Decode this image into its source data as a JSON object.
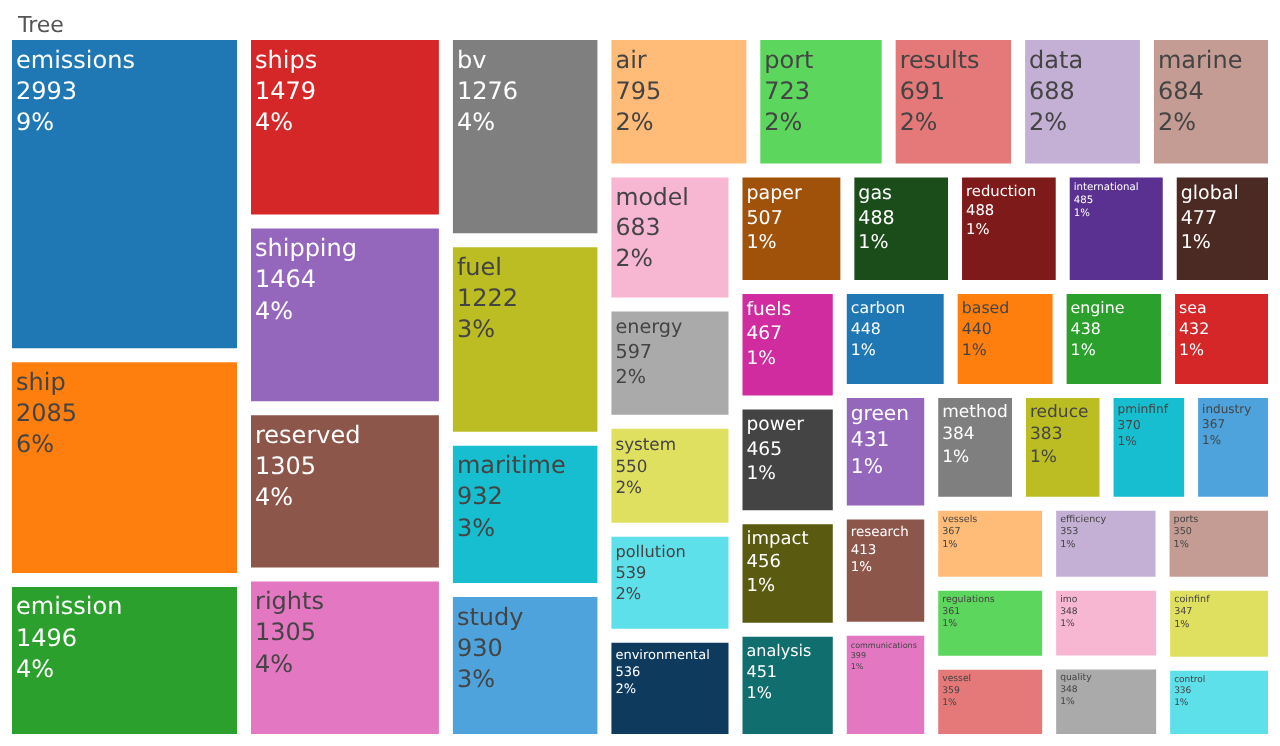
{
  "chart_data": {
    "type": "other",
    "title": "Tree",
    "categories": [
      "emissions",
      "ship",
      "emission",
      "ships",
      "shipping",
      "reserved",
      "rights",
      "bv",
      "fuel",
      "maritime",
      "study",
      "air",
      "port",
      "results",
      "data",
      "marine",
      "model",
      "energy",
      "system",
      "pollution",
      "environmental",
      "paper",
      "gas",
      "reduction",
      "international",
      "global",
      "fuels",
      "power",
      "impact",
      "analysis",
      "carbon",
      "based",
      "engine",
      "sea",
      "green",
      "research",
      "communications",
      "method",
      "reduce",
      "pminfinf",
      "industry",
      "vessels",
      "regulations",
      "vessel",
      "efficiency",
      "ports",
      "imo",
      "quality",
      "coinfinf",
      "control"
    ],
    "values": [
      2993,
      2085,
      1496,
      1479,
      1464,
      1305,
      1305,
      1276,
      1222,
      932,
      930,
      795,
      723,
      691,
      688,
      684,
      683,
      597,
      550,
      539,
      536,
      507,
      488,
      488,
      485,
      477,
      467,
      465,
      456,
      451,
      448,
      440,
      438,
      432,
      431,
      413,
      399,
      384,
      383,
      370,
      367,
      367,
      361,
      359,
      353,
      350,
      348,
      348,
      347,
      336
    ],
    "value_labels": [
      "2993\n9%",
      "2085\n6%",
      "1496\n4%",
      "1479\n4%",
      "1464\n4%",
      "1305\n4%",
      "1305\n4%",
      "1276\n4%",
      "1222\n3%",
      "932\n3%",
      "930\n3%",
      "795\n2%",
      "723\n2%",
      "691\n2%",
      "688\n2%",
      "684\n2%",
      "683\n2%",
      "597\n2%",
      "550\n2%",
      "539\n2%",
      "536\n2%",
      "507\n1%",
      "488\n1%",
      "488\n1%",
      "485\n1%",
      "477\n1%",
      "467\n1%",
      "465\n1%",
      "456\n1%",
      "451\n1%",
      "448\n1%",
      "440\n1%",
      "438\n1%",
      "432\n1%",
      "431\n1%",
      "413\n1%",
      "399\n1%",
      "384\n1%",
      "383\n1%",
      "370\n1%",
      "367\n1%",
      "367\n1%",
      "361\n1%",
      "359\n1%",
      "353\n1%",
      "350\n1%",
      "348\n1%",
      "348\n1%",
      "347\n1%",
      "336\n1%"
    ],
    "colors": [
      "#1f77b4",
      "#ff7f0e",
      "#2ca02c",
      "#d62728",
      "#9467bd",
      "#8c564b",
      "#e377c2",
      "#7f7f7f",
      "#bcbd22",
      "#17becf",
      "#4ea3dd",
      "#ffbb78",
      "#5cd65c",
      "#e57878",
      "#c5b0d5",
      "#c49c94",
      "#f7b6d2",
      "#aaaaaa",
      "#e0e060",
      "#5ee0ea",
      "#0e3a5e",
      "#a0520a",
      "#1a4d1a",
      "#7f1a1a",
      "#5a3190",
      "#4a2a22",
      "#d02ca0",
      "#444444",
      "#5a5a10",
      "#116e6e",
      "#1f77b4",
      "#ff7f0e",
      "#2ca02c",
      "#d62728",
      "#9467bd",
      "#8c564b",
      "#e377c2",
      "#7f7f7f",
      "#bcbd22",
      "#17becf",
      "#4ea3dd",
      "#ffbb78",
      "#5cd65c",
      "#e57878",
      "#c5b0d5",
      "#c49c94",
      "#f7b6d2",
      "#aaaaaa",
      "#e0e060",
      "#5ee0ea"
    ],
    "data_labels": true
  }
}
